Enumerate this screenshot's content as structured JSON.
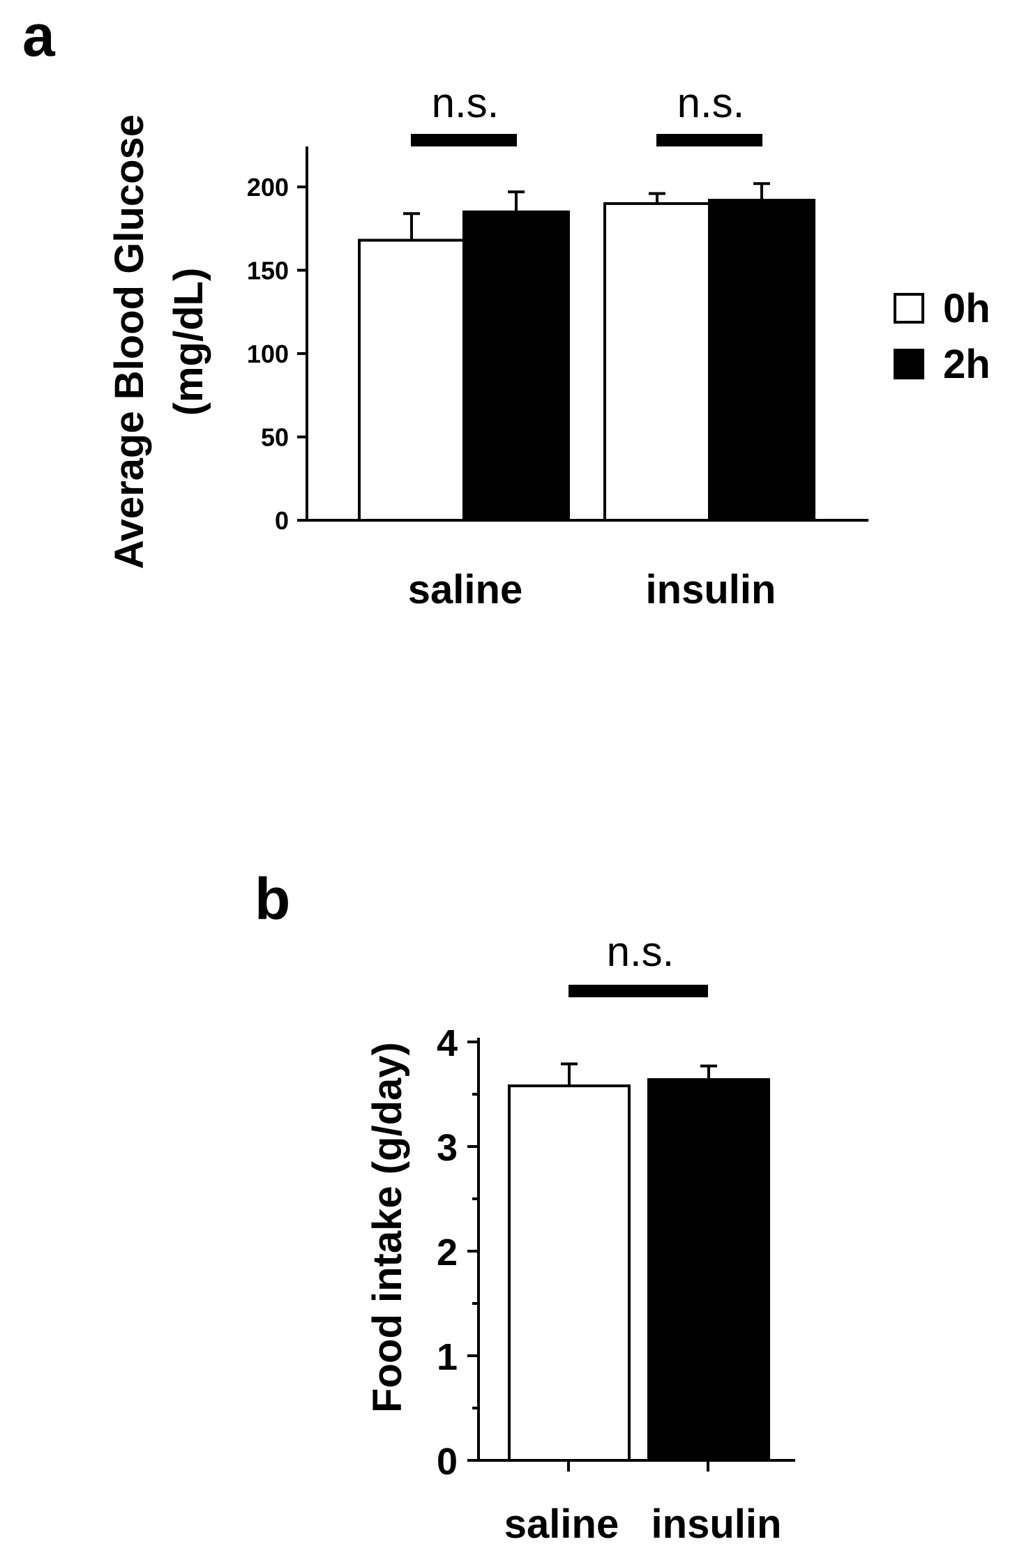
{
  "chart_data": [
    {
      "panel": "a",
      "type": "bar",
      "categories": [
        "saline",
        "insulin"
      ],
      "series": [
        {
          "name": "0h",
          "color": "#ffffff",
          "values": [
            168,
            190
          ],
          "errors": [
            16,
            6
          ]
        },
        {
          "name": "2h",
          "color": "#000000",
          "values": [
            185,
            192
          ],
          "errors": [
            12,
            10
          ]
        }
      ],
      "ylabel_line1": "Average Blood Glucose",
      "ylabel_line2": "(mg/dL)",
      "ylim": [
        0,
        225
      ],
      "yticks": [
        0,
        50,
        100,
        150,
        200
      ],
      "significance": [
        "n.s.",
        "n.s."
      ],
      "legend_position": "right",
      "grid": false
    },
    {
      "panel": "b",
      "type": "bar",
      "categories": [
        "saline",
        "insulin"
      ],
      "values": [
        3.58,
        3.64
      ],
      "errors": [
        0.21,
        0.13
      ],
      "colors": [
        "#ffffff",
        "#000000"
      ],
      "ylabel": "Food intake (g/day)",
      "ylim": [
        0,
        4
      ],
      "yticks": [
        0,
        1,
        2,
        3,
        4
      ],
      "significance": [
        "n.s."
      ],
      "grid": false
    }
  ]
}
